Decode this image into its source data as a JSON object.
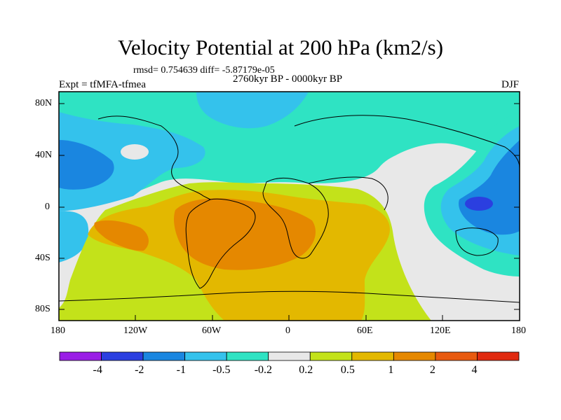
{
  "figure": {
    "title": "Velocity Potential at 200 hPa (km2/s)",
    "subtitle": "rmsd= 0.754639 diff= -5.87179e-05",
    "left_label": "Expt = tfMFA-tfmea",
    "center_label": "2760kyr BP - 0000kyr BP",
    "right_label": "DJF"
  },
  "axes": {
    "lat_labels": [
      "80N",
      "40N",
      "0",
      "40S",
      "80S"
    ],
    "lon_labels": [
      "180",
      "120W",
      "60W",
      "0",
      "60E",
      "120E",
      "180"
    ]
  },
  "colorbar": {
    "colors": [
      "#9a1ee6",
      "#2b3fe0",
      "#1a86e0",
      "#34c2ec",
      "#2fe3c3",
      "#e8e8e8",
      "#c3e21a",
      "#e3b800",
      "#e58800",
      "#e85a10",
      "#e02a10"
    ],
    "labels": [
      "-4",
      "-2",
      "-1",
      "-0.5",
      "-0.2",
      "0.2",
      "0.5",
      "1",
      "2",
      "4"
    ]
  },
  "map": {
    "projection": "cylindrical equidistant",
    "lon_range": [
      -180,
      180
    ],
    "lat_range": [
      -90,
      90
    ]
  }
}
